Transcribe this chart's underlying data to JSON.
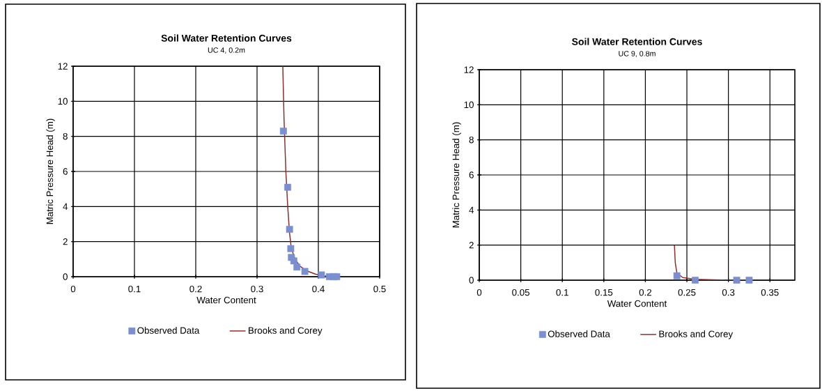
{
  "chart_data": [
    {
      "type": "scatter",
      "title": "Soil Water Retention Curves",
      "subtitle": "UC 4, 0.2m",
      "xlabel": "Water Content",
      "ylabel": "Matric Pressure Head (m)",
      "xlim": [
        0,
        0.5
      ],
      "ylim": [
        0,
        12
      ],
      "xticks": [
        0,
        0.1,
        0.2,
        0.3,
        0.4,
        0.5
      ],
      "yticks": [
        0,
        2,
        4,
        6,
        8,
        10,
        12
      ],
      "grid": true,
      "legend": "bottom",
      "series": [
        {
          "name": "Observed Data",
          "marker": "square",
          "color": "#7b8fd0",
          "x": [
            0.343,
            0.35,
            0.353,
            0.355,
            0.356,
            0.36,
            0.365,
            0.378,
            0.405,
            0.418,
            0.425,
            0.43
          ],
          "values": [
            8.3,
            5.1,
            2.7,
            1.6,
            1.1,
            0.9,
            0.55,
            0.3,
            0.1,
            0,
            0,
            0
          ]
        },
        {
          "name": "Brooks and Corey",
          "type": "line",
          "marker": "none",
          "color": "#8b2a2a",
          "x": [
            0.342,
            0.344,
            0.347,
            0.35,
            0.353,
            0.356,
            0.362,
            0.37,
            0.38,
            0.395,
            0.41,
            0.43
          ],
          "values": [
            12,
            9,
            6,
            4,
            2.5,
            1.6,
            1,
            0.6,
            0.35,
            0.15,
            0.05,
            0
          ]
        }
      ]
    },
    {
      "type": "scatter",
      "title": "Soil Water Retention Curves",
      "subtitle": "UC 9, 0.8m",
      "xlabel": "Water Content",
      "ylabel": "Matric Pressure Head (m)",
      "xlim": [
        0,
        0.38
      ],
      "ylim": [
        0,
        12
      ],
      "xticks": [
        0,
        0.05,
        0.1,
        0.15,
        0.2,
        0.25,
        0.3,
        0.35
      ],
      "yticks": [
        0,
        2,
        4,
        6,
        8,
        10,
        12
      ],
      "grid": true,
      "legend": "bottom",
      "series": [
        {
          "name": "Observed Data",
          "marker": "square",
          "color": "#7b8fd0",
          "x": [
            0.238,
            0.26,
            0.31,
            0.325
          ],
          "values": [
            0.25,
            0,
            0,
            0
          ]
        },
        {
          "name": "Brooks and Corey",
          "type": "line",
          "marker": "none",
          "color": "#8b2a2a",
          "x": [
            0.235,
            0.236,
            0.238,
            0.245,
            0.26,
            0.3,
            0.33
          ],
          "values": [
            2,
            1,
            0.4,
            0.15,
            0.05,
            0,
            0
          ]
        }
      ]
    }
  ]
}
